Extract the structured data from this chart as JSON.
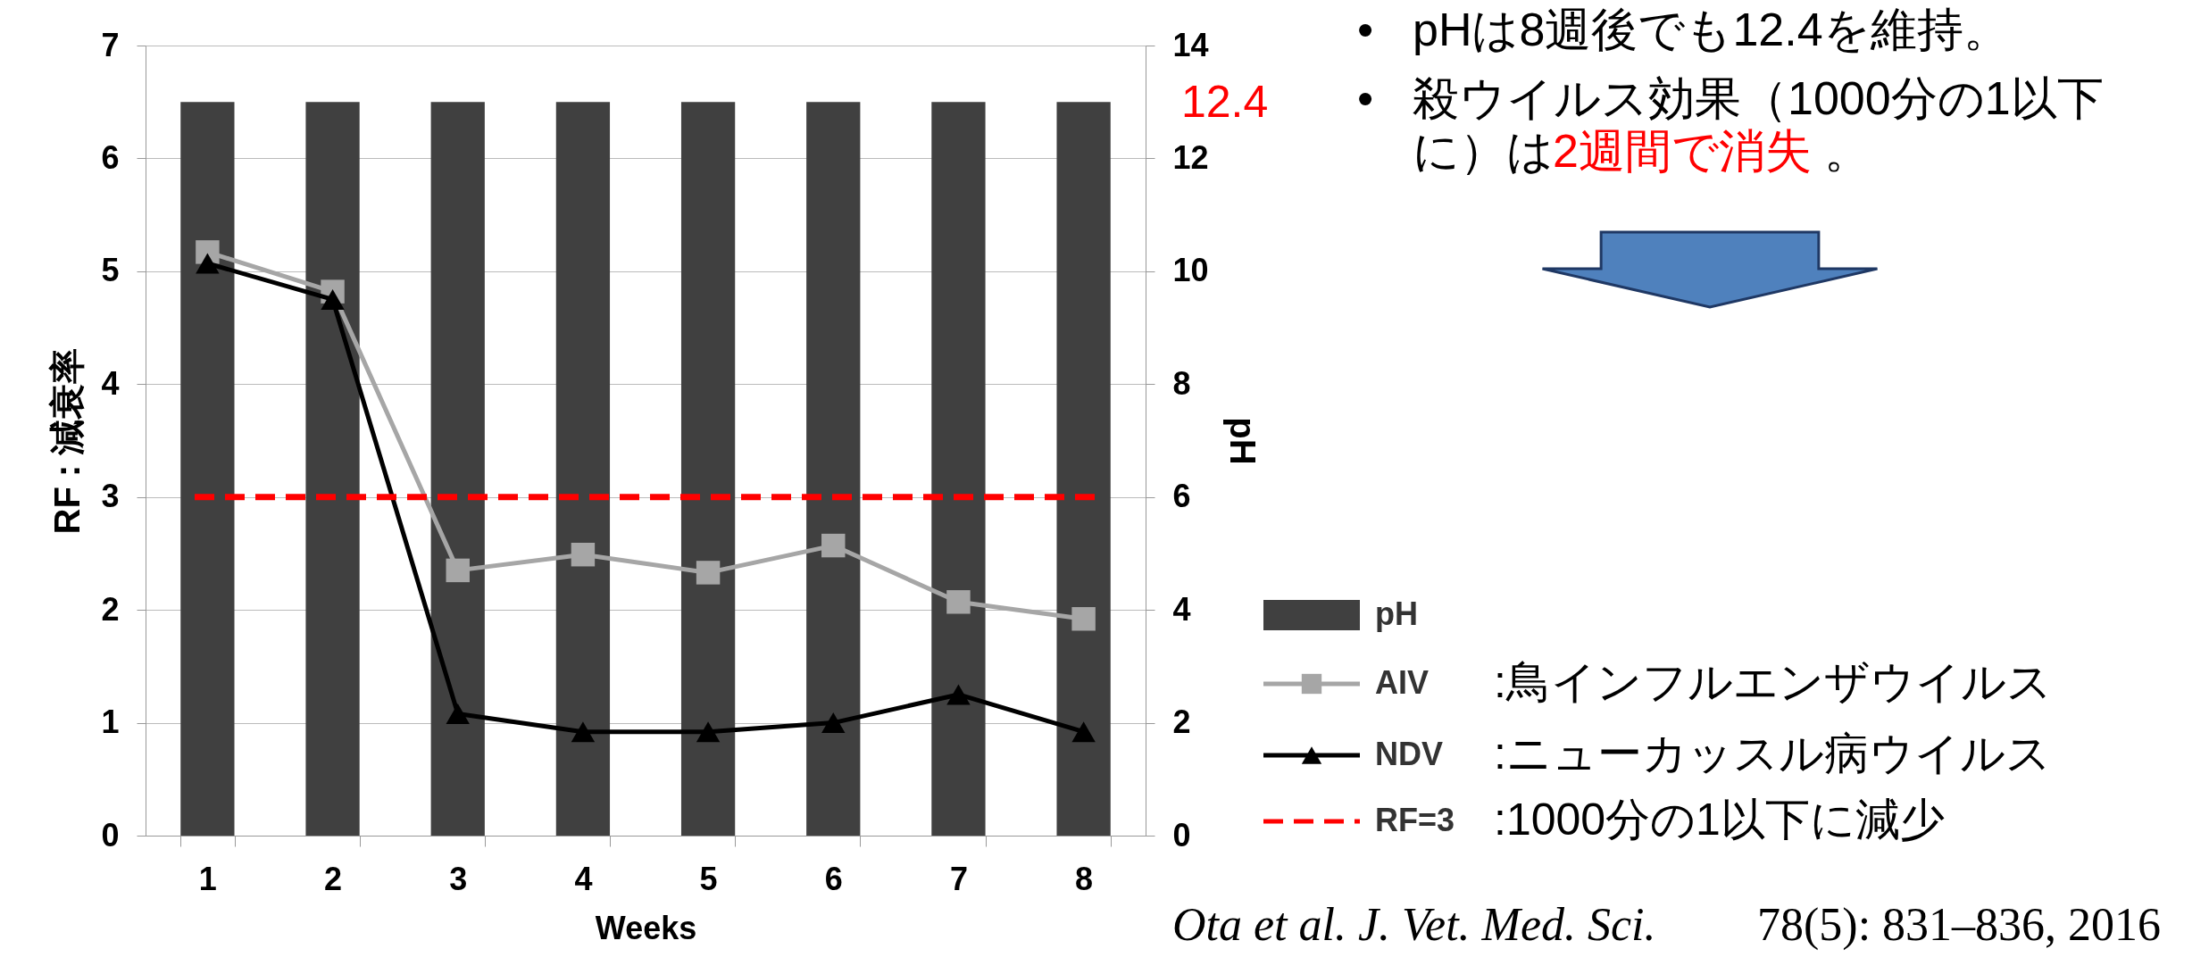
{
  "chart_data": {
    "type": "bar",
    "xlabel": "Weeks",
    "ylabel": "RF : 減衰率",
    "y2label": "pH",
    "categories": [
      "1",
      "2",
      "3",
      "4",
      "5",
      "6",
      "7",
      "8"
    ],
    "series": [
      {
        "name": "pH",
        "axis": "y2",
        "color": "#404040",
        "values": [
          13,
          13,
          13,
          13,
          13,
          13,
          13,
          13
        ]
      },
      {
        "name": "AIV",
        "type": "line",
        "marker": "square",
        "color": "#a6a6a6",
        "values": [
          5.17,
          4.82,
          2.35,
          2.49,
          2.33,
          2.57,
          2.07,
          1.92
        ]
      },
      {
        "name": "NDV",
        "type": "line",
        "marker": "triangle",
        "color": "#000000",
        "values": [
          5.07,
          4.75,
          1.08,
          0.92,
          0.92,
          1.0,
          1.25,
          0.92
        ]
      }
    ],
    "ylim": [
      0,
      7
    ],
    "yticks": [
      0,
      1,
      2,
      3,
      4,
      5,
      6,
      7
    ],
    "y2lim": [
      0,
      14
    ],
    "y2ticks": [
      0,
      2,
      4,
      6,
      8,
      10,
      12,
      14
    ],
    "ref_lines": [
      {
        "axis": "y",
        "value": 3,
        "label": "RF=3",
        "color": "#ff0000",
        "line_style": "dashed"
      }
    ],
    "grid": "y",
    "legend": "right",
    "annotations": [
      "•",
      "pHは8週後でも12.4を維持。",
      "•",
      "殺ウイルス効果（1000分の1以下",
      "に）は",
      "2週間で消失",
      "。",
      "12.4",
      ":鳥インフルエンザウイルス",
      ":ニューカッスル病ウイルス",
      ":1000分の1以下に減少",
      "Ota et al. J. Vet. Med. Sci.",
      "78(5): 831–836, 2016"
    ]
  }
}
